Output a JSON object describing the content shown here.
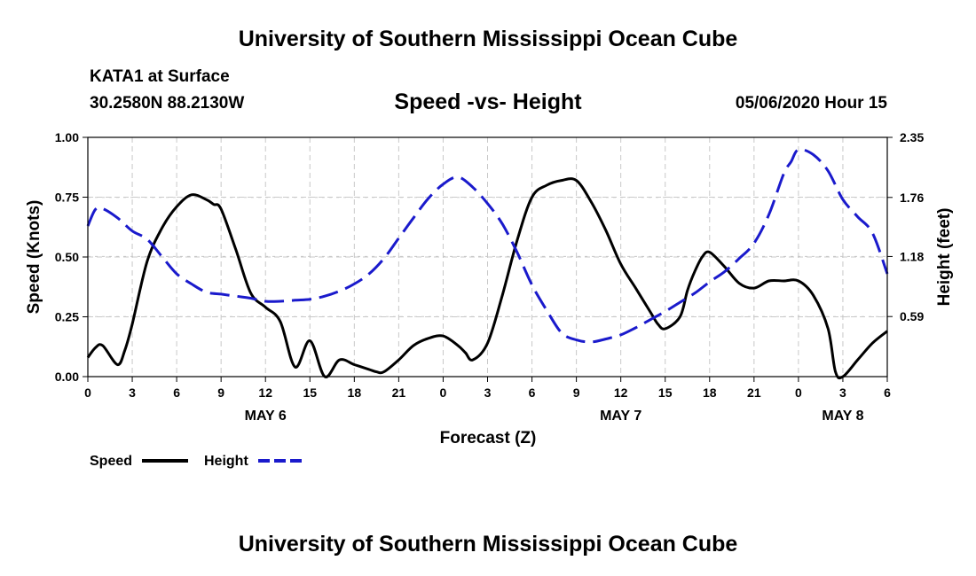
{
  "header": {
    "title": "University of Southern Mississippi Ocean Cube",
    "station": "KATA1 at Surface",
    "coordinates": "30.2580N 88.2130W",
    "date_hour": "05/06/2020 Hour 15"
  },
  "footer": {
    "title": "University of Southern Mississippi Ocean Cube"
  },
  "colors": {
    "speed": "#000000",
    "height": "#1a1acc",
    "grid": "#c8c8c8"
  },
  "chart_data": {
    "type": "line",
    "title": "Speed -vs- Height",
    "xlabel": "Forecast (Z)",
    "ylabel": "Speed (Knots)",
    "y2label": "Height (feet)",
    "xlim": [
      0,
      54
    ],
    "ylim": [
      0,
      1
    ],
    "y2lim": [
      0,
      2.35
    ],
    "x_ticks": [
      {
        "x": 0,
        "label": "0"
      },
      {
        "x": 3,
        "label": "3"
      },
      {
        "x": 6,
        "label": "6"
      },
      {
        "x": 9,
        "label": "9"
      },
      {
        "x": 12,
        "label": "12"
      },
      {
        "x": 15,
        "label": "15"
      },
      {
        "x": 18,
        "label": "18"
      },
      {
        "x": 21,
        "label": "21"
      },
      {
        "x": 24,
        "label": "0"
      },
      {
        "x": 27,
        "label": "3"
      },
      {
        "x": 30,
        "label": "6"
      },
      {
        "x": 33,
        "label": "9"
      },
      {
        "x": 36,
        "label": "12"
      },
      {
        "x": 39,
        "label": "15"
      },
      {
        "x": 42,
        "label": "18"
      },
      {
        "x": 45,
        "label": "21"
      },
      {
        "x": 48,
        "label": "0"
      },
      {
        "x": 51,
        "label": "3"
      },
      {
        "x": 54,
        "label": "6"
      }
    ],
    "y_ticks": [
      {
        "y": 0,
        "label": "0.00"
      },
      {
        "y": 0.25,
        "label": "0.25"
      },
      {
        "y": 0.5,
        "label": "0.50"
      },
      {
        "y": 0.75,
        "label": "0.75"
      },
      {
        "y": 1,
        "label": "1.00"
      }
    ],
    "y2_ticks": [
      {
        "y": 0.59,
        "label": "0.59"
      },
      {
        "y": 1.18,
        "label": "1.18"
      },
      {
        "y": 1.76,
        "label": "1.76"
      },
      {
        "y": 2.35,
        "label": "2.35"
      }
    ],
    "date_labels": [
      {
        "x": 12,
        "label": "MAY 6"
      },
      {
        "x": 36,
        "label": "MAY 7"
      },
      {
        "x": 51,
        "label": "MAY 8"
      }
    ],
    "legend": {
      "speed": "Speed",
      "height": "Height",
      "position": "bottom-left"
    },
    "series": [
      {
        "name": "Speed",
        "axis": "left",
        "x": [
          0,
          0.5,
          1,
          2,
          2.5,
          3,
          4,
          5,
          6,
          7,
          8,
          8.5,
          9,
          10,
          11,
          12,
          13,
          14,
          15,
          16,
          17,
          18,
          19,
          19.5,
          20,
          21,
          22,
          23,
          24,
          25,
          25.5,
          26,
          27,
          28,
          29,
          30,
          31,
          32,
          33,
          34,
          35,
          36,
          37,
          38,
          38.5,
          39,
          40,
          40.5,
          41,
          41.5,
          42,
          43,
          44,
          45,
          46,
          47,
          48,
          49,
          50,
          50.5,
          51,
          52,
          53,
          54
        ],
        "values": [
          0.08,
          0.12,
          0.13,
          0.05,
          0.11,
          0.22,
          0.48,
          0.62,
          0.71,
          0.76,
          0.74,
          0.72,
          0.7,
          0.53,
          0.35,
          0.29,
          0.23,
          0.04,
          0.15,
          0.0,
          0.07,
          0.05,
          0.03,
          0.02,
          0.02,
          0.07,
          0.13,
          0.16,
          0.17,
          0.13,
          0.1,
          0.07,
          0.14,
          0.34,
          0.57,
          0.75,
          0.8,
          0.82,
          0.82,
          0.73,
          0.61,
          0.47,
          0.37,
          0.27,
          0.22,
          0.2,
          0.25,
          0.36,
          0.44,
          0.5,
          0.52,
          0.46,
          0.39,
          0.37,
          0.4,
          0.4,
          0.4,
          0.34,
          0.2,
          0.02,
          0.0,
          0.07,
          0.14,
          0.19
        ]
      },
      {
        "name": "Height",
        "axis": "right",
        "x": [
          0,
          0.5,
          1,
          2,
          3,
          4,
          5,
          6,
          7,
          8,
          9,
          10,
          11,
          12,
          13,
          14,
          15,
          16,
          17,
          18,
          19,
          20,
          21,
          22,
          23,
          24,
          25,
          26,
          27,
          28,
          29,
          30,
          31,
          32,
          33,
          34,
          35,
          36,
          37,
          38,
          39,
          40,
          41,
          42,
          43,
          44,
          45,
          46,
          47,
          47.5,
          48,
          49,
          50,
          51,
          52,
          53,
          54
        ],
        "values": [
          1.48,
          1.64,
          1.65,
          1.56,
          1.43,
          1.35,
          1.18,
          1.01,
          0.91,
          0.83,
          0.81,
          0.79,
          0.77,
          0.74,
          0.74,
          0.75,
          0.76,
          0.79,
          0.84,
          0.91,
          1.01,
          1.16,
          1.36,
          1.56,
          1.75,
          1.89,
          1.96,
          1.86,
          1.7,
          1.5,
          1.22,
          0.9,
          0.65,
          0.43,
          0.36,
          0.34,
          0.37,
          0.41,
          0.48,
          0.56,
          0.64,
          0.73,
          0.82,
          0.93,
          1.03,
          1.16,
          1.31,
          1.59,
          1.99,
          2.11,
          2.23,
          2.18,
          2.02,
          1.74,
          1.57,
          1.41,
          1.01
        ]
      }
    ]
  }
}
